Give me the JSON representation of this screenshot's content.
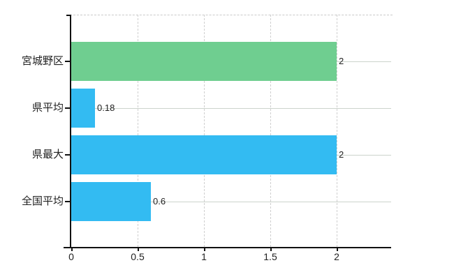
{
  "chart_data": {
    "type": "bar",
    "orientation": "horizontal",
    "title": "",
    "categories": [
      "宮城野区",
      "県平均",
      "県最大",
      "全国平均"
    ],
    "values": [
      2,
      0.18,
      2,
      0.6
    ],
    "value_labels": [
      "2",
      "0.18",
      "2",
      "0.6"
    ],
    "bar_colors": [
      "#6fce90",
      "#33bbf2",
      "#33bbf2",
      "#33bbf2"
    ],
    "x_ticks": [
      0,
      0.5,
      1,
      1.5,
      2
    ],
    "x_tick_labels": [
      "0",
      "0.5",
      "1",
      "1.5",
      "2"
    ],
    "xlim": [
      0,
      2.41
    ],
    "xlabel": "",
    "ylabel": "",
    "grid": true,
    "legend_position": "none",
    "colors": {
      "background": "#ffffff",
      "axis": "#111111",
      "grid_horizontal": "#ccd3cc",
      "grid_vertical": "#cfcfcf",
      "text": "#222222",
      "green_bar": "#6fce90",
      "blue_bar": "#33bbf2"
    }
  }
}
